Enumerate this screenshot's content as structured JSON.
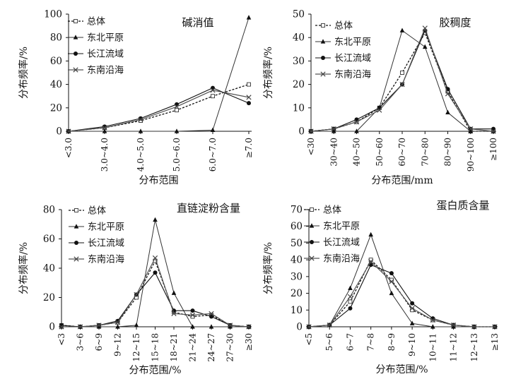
{
  "chart_data": [
    {
      "type": "line",
      "title": "碱消值",
      "xlabel": "分布范围",
      "ylabel": "分布频率/%",
      "categories": [
        "<3.0",
        "3.0~4.0",
        "4.0~5.0",
        "5.0~6.0",
        "6.0~7.0",
        "≥7.0"
      ],
      "ylim": [
        0,
        100
      ],
      "yticks": [
        0,
        20,
        40,
        60,
        80,
        100
      ],
      "legend_position": "top-left",
      "series": [
        {
          "name": "总体",
          "style": "dashed",
          "marker": "square-open",
          "values": [
            0,
            3,
            9,
            18,
            30,
            40
          ]
        },
        {
          "name": "东北平原",
          "style": "solid",
          "marker": "triangle",
          "values": [
            0,
            0,
            0,
            0,
            1,
            97
          ]
        },
        {
          "name": "长江流域",
          "style": "solid",
          "marker": "circle",
          "values": [
            0,
            4,
            11,
            23,
            37,
            24
          ]
        },
        {
          "name": "东南沿海",
          "style": "solid",
          "marker": "cross",
          "values": [
            0,
            3,
            10,
            21,
            35,
            29
          ]
        }
      ]
    },
    {
      "type": "line",
      "title": "胶稠度",
      "xlabel": "分布范围/mm",
      "ylabel": "分布频率/%",
      "categories": [
        "<30",
        "30~40",
        "40~50",
        "50~60",
        "60~70",
        "70~80",
        "80~90",
        "90~100",
        "≥100"
      ],
      "ylim": [
        0,
        50
      ],
      "yticks": [
        0,
        10,
        20,
        30,
        40,
        50
      ],
      "legend_position": "top-left",
      "series": [
        {
          "name": "总体",
          "style": "dashed",
          "marker": "square-open",
          "values": [
            0,
            1,
            4,
            10,
            25,
            42,
            17,
            0,
            0
          ]
        },
        {
          "name": "东北平原",
          "style": "solid",
          "marker": "triangle",
          "values": [
            0,
            0,
            0,
            10,
            43,
            36,
            8,
            0,
            0
          ]
        },
        {
          "name": "长江流域",
          "style": "solid",
          "marker": "circle",
          "values": [
            0,
            1,
            5,
            10,
            20,
            43,
            18,
            1,
            1
          ]
        },
        {
          "name": "东南沿海",
          "style": "solid",
          "marker": "cross",
          "values": [
            0,
            1,
            4,
            9,
            20,
            44,
            16,
            1,
            0
          ]
        }
      ]
    },
    {
      "type": "line",
      "title": "直链淀粉含量",
      "xlabel": "分布范围/%",
      "ylabel": "分布频率/%",
      "categories": [
        "<3",
        "3~6",
        "6~9",
        "9~12",
        "12~15",
        "15~18",
        "18~21",
        "21~24",
        "24~27",
        "27~30",
        "≥30"
      ],
      "ylim": [
        0,
        80
      ],
      "yticks": [
        0,
        20,
        40,
        60,
        80
      ],
      "legend_position": "top-left",
      "series": [
        {
          "name": "总体",
          "style": "dashed",
          "marker": "square-open",
          "values": [
            1,
            0,
            1,
            3,
            20,
            45,
            10,
            7,
            8,
            1,
            0
          ]
        },
        {
          "name": "东北平原",
          "style": "solid",
          "marker": "triangle",
          "values": [
            0,
            0,
            0,
            0,
            1,
            73,
            23,
            0,
            0,
            0,
            0
          ]
        },
        {
          "name": "长江流域",
          "style": "solid",
          "marker": "circle",
          "values": [
            1,
            0,
            1,
            4,
            22,
            37,
            11,
            11,
            7,
            1,
            0
          ]
        },
        {
          "name": "东南沿海",
          "style": "solid",
          "marker": "cross",
          "values": [
            0,
            0,
            1,
            3,
            22,
            47,
            9,
            8,
            9,
            1,
            0
          ]
        }
      ]
    },
    {
      "type": "line",
      "title": "蛋白质含量",
      "xlabel": "分布范围/%",
      "ylabel": "分布频率/%",
      "categories": [
        "<5",
        "5~6",
        "6~7",
        "7~8",
        "8~9",
        "9~10",
        "10~11",
        "11~12",
        "12~13",
        "≥13"
      ],
      "ylim": [
        0,
        70
      ],
      "yticks": [
        0,
        10,
        20,
        30,
        40,
        50,
        60,
        70
      ],
      "legend_position": "top-left",
      "series": [
        {
          "name": "总体",
          "style": "dashed",
          "marker": "square-open",
          "values": [
            0,
            1,
            15,
            40,
            28,
            10,
            4,
            1,
            0,
            0
          ]
        },
        {
          "name": "东北平原",
          "style": "solid",
          "marker": "triangle",
          "values": [
            0,
            1,
            23,
            55,
            20,
            2,
            0,
            0,
            0,
            0
          ]
        },
        {
          "name": "长江流域",
          "style": "solid",
          "marker": "circle",
          "values": [
            0,
            1,
            11,
            37,
            32,
            14,
            5,
            1,
            0,
            0
          ]
        },
        {
          "name": "东南沿海",
          "style": "solid",
          "marker": "cross",
          "values": [
            0,
            1,
            18,
            39,
            27,
            11,
            4,
            1,
            0,
            0
          ]
        }
      ]
    }
  ]
}
